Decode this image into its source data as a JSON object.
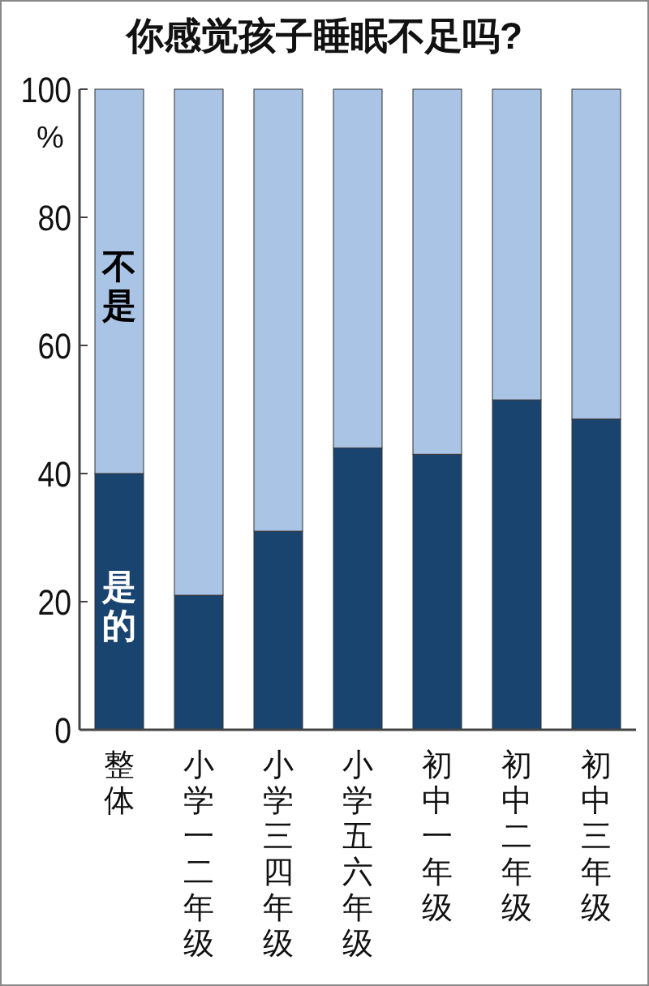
{
  "chart_data": {
    "type": "bar",
    "title": "你感觉孩子睡眠不足吗?",
    "ylabel": "%",
    "categories": [
      "整体",
      "小学一二年级",
      "小学三四年级",
      "小学五六年级",
      "初中一年级",
      "初中二年级",
      "初中三年级"
    ],
    "stacked": true,
    "series": [
      {
        "name": "是的",
        "color": "#1a4470",
        "values": [
          40,
          21,
          31,
          44,
          43,
          51.5,
          48.5
        ]
      },
      {
        "name": "不是",
        "color": "#a9c4e4",
        "values": [
          60,
          79,
          69,
          56,
          57,
          48.5,
          51.5
        ]
      }
    ],
    "ylim": [
      0,
      100
    ],
    "yticks": [
      0,
      20,
      40,
      60,
      80,
      100
    ],
    "grid": false
  }
}
